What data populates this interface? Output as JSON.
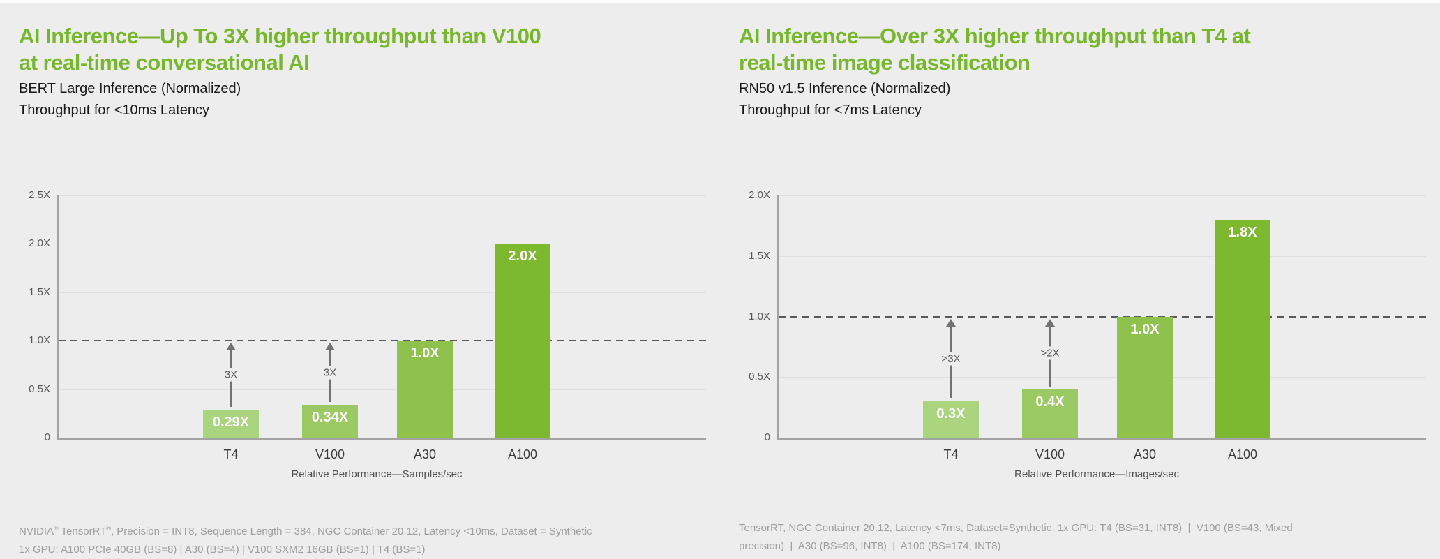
{
  "page": {
    "background": "#ededed",
    "accent_green": "#76b82a",
    "reference_line_color": "#58595b",
    "arrow_color": "#717274"
  },
  "chart_data": [
    {
      "type": "bar",
      "title": "AI Inference—Up To 3X higher throughput than V100 at real-time conversational AI",
      "title_lines": [
        "AI Inference—Up To 3X higher throughput than V100",
        "at real-time conversational AI"
      ],
      "subtitle_lines": [
        "BERT Large Inference (Normalized)",
        "Throughput for <10ms Latency"
      ],
      "categories": [
        "T4",
        "V100",
        "A30",
        "A100"
      ],
      "values": [
        0.29,
        0.34,
        1.0,
        2.0
      ],
      "bar_labels": [
        "0.29X",
        "0.34X",
        "1.0X",
        "2.0X"
      ],
      "bar_colors": [
        "#aad57e",
        "#9bca62",
        "#8fc24d",
        "#7db92e"
      ],
      "xlabel": "Relative Performance—Samples/sec",
      "ylabel": "",
      "ylim": [
        0,
        2.5
      ],
      "ytick_step": 0.5,
      "ytick_labels": [
        "0",
        "0.5X",
        "1.0X",
        "1.5X",
        "2.0X",
        "2.5X"
      ],
      "grid": true,
      "legend": false,
      "reference_line": 1.0,
      "annotations": [
        {
          "category": "T4",
          "label": "3X"
        },
        {
          "category": "V100",
          "label": "3X"
        }
      ],
      "footnote_lines": [
        "NVIDIA® TensorRT®, Precision = INT8, Sequence Length = 384, NGC Container 20.12, Latency <10ms, Dataset = Synthetic",
        "1x GPU: A100 PCIe 40GB (BS=8) | A30 (BS=4) | V100 SXM2 16GB (BS=1) | T4 (BS=1)"
      ]
    },
    {
      "type": "bar",
      "title": "AI Inference—Over 3X higher throughput than T4 at real-time image classification",
      "title_lines": [
        "AI Inference—Over 3X higher throughput than T4 at",
        "real-time image classification"
      ],
      "subtitle_lines": [
        "RN50 v1.5 Inference (Normalized)",
        "Throughput for <7ms Latency"
      ],
      "categories": [
        "T4",
        "V100",
        "A30",
        "A100"
      ],
      "values": [
        0.3,
        0.4,
        1.0,
        1.8
      ],
      "bar_labels": [
        "0.3X",
        "0.4X",
        "1.0X",
        "1.8X"
      ],
      "bar_colors": [
        "#aad57e",
        "#9bca62",
        "#8fc24d",
        "#7db92e"
      ],
      "xlabel": "Relative Performance—Images/sec",
      "ylabel": "",
      "ylim": [
        0,
        2.0
      ],
      "ytick_step": 0.5,
      "ytick_labels": [
        "0",
        "0.5X",
        "1.0X",
        "1.5X",
        "2.0X"
      ],
      "grid": true,
      "legend": false,
      "reference_line": 1.0,
      "annotations": [
        {
          "category": "T4",
          "label": ">3X"
        },
        {
          "category": "V100",
          "label": ">2X"
        }
      ],
      "footnote_lines": [
        "TensorRT, NGC Container 20.12, Latency <7ms, Dataset=Synthetic, 1x GPU: T4 (BS=31, INT8)  |  V100 (BS=43, Mixed",
        "precision)  |  A30 (BS=96, INT8)  |  A100 (BS=174, INT8)"
      ]
    }
  ]
}
